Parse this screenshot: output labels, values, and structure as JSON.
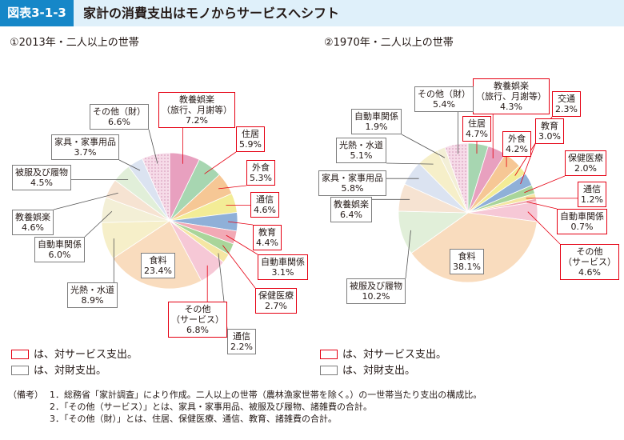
{
  "figure": {
    "number": "図表3-1-3",
    "title": "家計の消費支出はモノからサービスへシフト"
  },
  "legend": {
    "service": "は、対サービス支出。",
    "goods": "は、対財支出。"
  },
  "notes": {
    "head": "（備考）",
    "lines": [
      "1．総務省「家計調査」により作成。二人以上の世帯（農林漁家世帯を除く。）の一世帯当たり支出の構成比。",
      "2．「その他（サービス）」とは、家具・家事用品、被服及び履物、諸雑費の合計。",
      "3．「その他（財）」とは、住居、保健医療、通信、教育、諸雑費の合計。"
    ]
  },
  "colors": {
    "service_border": "#e50012",
    "goods_border": "#7d7d7d",
    "header_bg": "#dff0fa",
    "badge_bg": "#1687c8"
  },
  "chart_data": [
    {
      "type": "pie",
      "title": "①2013年・二人以上の世帯",
      "unit": "%",
      "slices": [
        {
          "name": "教養娯楽（旅行、月謝等）",
          "lines": [
            "教養娯楽",
            "（旅行、月謝等）"
          ],
          "value": 7.2,
          "label": "7.2%",
          "kind": "service",
          "color": "#e8a0bf"
        },
        {
          "name": "住居",
          "lines": [
            "住居"
          ],
          "value": 5.9,
          "label": "5.9%",
          "kind": "service",
          "color": "#a7d6b1"
        },
        {
          "name": "外食",
          "lines": [
            "外食"
          ],
          "value": 5.3,
          "label": "5.3%",
          "kind": "service",
          "color": "#f6c795"
        },
        {
          "name": "通信",
          "lines": [
            "通信"
          ],
          "value": 4.6,
          "label": "4.6%",
          "kind": "service",
          "color": "#f3ec96"
        },
        {
          "name": "教育",
          "lines": [
            "教育"
          ],
          "value": 4.4,
          "label": "4.4%",
          "kind": "service",
          "color": "#8fb0d8"
        },
        {
          "name": "自動車関係",
          "lines": [
            "自動車関係"
          ],
          "value": 3.1,
          "label": "3.1%",
          "kind": "service",
          "color": "#f2a9b5"
        },
        {
          "name": "保健医療",
          "lines": [
            "保健医療"
          ],
          "value": 2.7,
          "label": "2.7%",
          "kind": "service",
          "color": "#a9d59a"
        },
        {
          "name": "通信",
          "lines": [
            "通信"
          ],
          "value": 2.2,
          "label": "2.2%",
          "kind": "goods",
          "color": "#f5e6a3"
        },
        {
          "name": "その他（サービス）",
          "lines": [
            "その他",
            "（サービス）"
          ],
          "value": 6.8,
          "label": "6.8%",
          "kind": "service",
          "color": "#f6c8d6"
        },
        {
          "name": "食料",
          "lines": [
            "食料"
          ],
          "value": 23.4,
          "label": "23.4%",
          "kind": "goods",
          "color": "#f9dcbe"
        },
        {
          "name": "光熱・水道",
          "lines": [
            "光熱・水道"
          ],
          "value": 8.9,
          "label": "8.9%",
          "kind": "goods",
          "color": "#f6efc9"
        },
        {
          "name": "自動車関係",
          "lines": [
            "自動車関係"
          ],
          "value": 6.0,
          "label": "6.0%",
          "kind": "goods",
          "color": "#f3efd6"
        },
        {
          "name": "教養娯楽",
          "lines": [
            "教養娯楽"
          ],
          "value": 4.6,
          "label": "4.6%",
          "kind": "goods",
          "color": "#f6e3d2"
        },
        {
          "name": "被服及び履物",
          "lines": [
            "被服及び履物"
          ],
          "value": 4.5,
          "label": "4.5%",
          "kind": "goods",
          "color": "#e1efd9"
        },
        {
          "name": "家具・家事用品",
          "lines": [
            "家具・家事用品"
          ],
          "value": 3.7,
          "label": "3.7%",
          "kind": "goods",
          "color": "#dbe3f1"
        },
        {
          "name": "その他（財）",
          "lines": [
            "その他（財）"
          ],
          "value": 6.6,
          "label": "6.6%",
          "kind": "goods",
          "color": "#ead8e6"
        }
      ]
    },
    {
      "type": "pie",
      "title": "②1970年・二人以上の世帯",
      "unit": "%",
      "slices": [
        {
          "name": "住居",
          "lines": [
            "住居"
          ],
          "value": 4.7,
          "label": "4.7%",
          "kind": "service",
          "color": "#a7d6b1"
        },
        {
          "name": "教養娯楽（旅行、月謝等）",
          "lines": [
            "教養娯楽",
            "（旅行、月謝等）"
          ],
          "value": 4.3,
          "label": "4.3%",
          "kind": "service",
          "color": "#e8a0bf"
        },
        {
          "name": "外食",
          "lines": [
            "外食"
          ],
          "value": 4.2,
          "label": "4.2%",
          "kind": "service",
          "color": "#f6c795"
        },
        {
          "name": "交通",
          "lines": [
            "交通"
          ],
          "value": 2.3,
          "label": "2.3%",
          "kind": "service",
          "color": "#f3ec96"
        },
        {
          "name": "教育",
          "lines": [
            "教育"
          ],
          "value": 3.0,
          "label": "3.0%",
          "kind": "service",
          "color": "#8fb0d8"
        },
        {
          "name": "保健医療",
          "lines": [
            "保健医療"
          ],
          "value": 2.0,
          "label": "2.0%",
          "kind": "service",
          "color": "#a9d59a"
        },
        {
          "name": "通信",
          "lines": [
            "通信"
          ],
          "value": 1.2,
          "label": "1.2%",
          "kind": "service",
          "color": "#f5e6a3"
        },
        {
          "name": "自動車関係",
          "lines": [
            "自動車関係"
          ],
          "value": 0.7,
          "label": "0.7%",
          "kind": "service",
          "color": "#f2a9b5"
        },
        {
          "name": "その他（サービス）",
          "lines": [
            "その他",
            "（サービス）"
          ],
          "value": 4.6,
          "label": "4.6%",
          "kind": "service",
          "color": "#f6c8d6"
        },
        {
          "name": "食料",
          "lines": [
            "食料"
          ],
          "value": 38.1,
          "label": "38.1%",
          "kind": "goods",
          "color": "#f9dcbe"
        },
        {
          "name": "被服及び履物",
          "lines": [
            "被服及び履物"
          ],
          "value": 10.2,
          "label": "10.2%",
          "kind": "goods",
          "color": "#e1efd9"
        },
        {
          "name": "教養娯楽",
          "lines": [
            "教養娯楽"
          ],
          "value": 6.4,
          "label": "6.4%",
          "kind": "goods",
          "color": "#f6e3d2"
        },
        {
          "name": "家具・家事用品",
          "lines": [
            "家具・家事用品"
          ],
          "value": 5.8,
          "label": "5.8%",
          "kind": "goods",
          "color": "#dbe3f1"
        },
        {
          "name": "光熱・水道",
          "lines": [
            "光熱・水道"
          ],
          "value": 5.1,
          "label": "5.1%",
          "kind": "goods",
          "color": "#f6efc9"
        },
        {
          "name": "自動車関係",
          "lines": [
            "自動車関係"
          ],
          "value": 1.9,
          "label": "1.9%",
          "kind": "goods",
          "color": "#f3efd6"
        },
        {
          "name": "その他（財）",
          "lines": [
            "その他（財）"
          ],
          "value": 5.4,
          "label": "5.4%",
          "kind": "goods",
          "color": "#ead8e6"
        }
      ]
    }
  ]
}
